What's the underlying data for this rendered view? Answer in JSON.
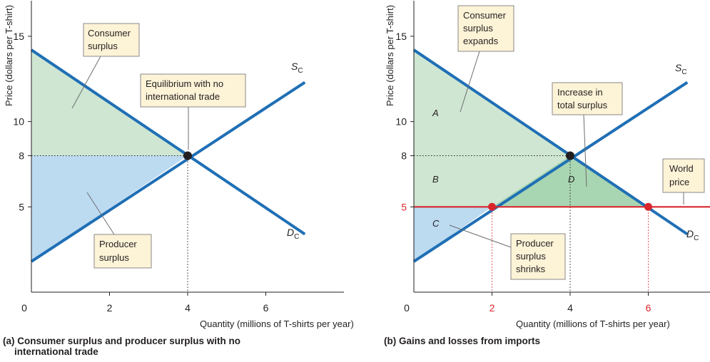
{
  "chart_data": [
    {
      "type": "line",
      "caption": "(a) Consumer surplus and producer surplus with no international trade",
      "caption_lines": [
        "(a) Consumer surplus and producer surplus with no",
        "international trade"
      ],
      "xlabel": "Quantity (millions of T-shirts per year)",
      "ylabel": "Price (dollars per T-shirt)",
      "xlim": [
        0,
        8
      ],
      "ylim": [
        0,
        17
      ],
      "x_ticks": [
        "0",
        "2",
        "4",
        "6"
      ],
      "y_ticks": [
        "5",
        "8",
        "10",
        "15"
      ],
      "series": [
        {
          "name": "D",
          "sub": "C",
          "x": [
            0,
            7
          ],
          "y": [
            14.2,
            3.4
          ]
        },
        {
          "name": "S",
          "sub": "C",
          "x": [
            0,
            7
          ],
          "y": [
            1.8,
            12.3
          ]
        }
      ],
      "equilibrium": {
        "x": 4,
        "y": 8
      },
      "shaded": [
        {
          "label": "Consumer surplus",
          "color": "#cfe6d2"
        },
        {
          "label": "Producer surplus",
          "color": "#bcdaf0"
        }
      ],
      "callouts": [
        {
          "lines": [
            "Consumer",
            "surplus"
          ]
        },
        {
          "lines": [
            "Equilibrium with no",
            "international trade"
          ]
        },
        {
          "lines": [
            "Producer",
            "surplus"
          ]
        }
      ]
    },
    {
      "type": "line",
      "caption": "(b) Gains and losses from imports",
      "xlabel": "Quantity (millions of T-shirts per year)",
      "ylabel": "Price (dollars per T-shirt)",
      "xlim": [
        0,
        8
      ],
      "ylim": [
        0,
        17
      ],
      "x_ticks": [
        "0",
        "2",
        "4",
        "6"
      ],
      "highlight_x_ticks": [
        "2",
        "6"
      ],
      "y_ticks": [
        "5",
        "8",
        "10",
        "15"
      ],
      "highlight_y_ticks": [
        "5"
      ],
      "series": [
        {
          "name": "D",
          "sub": "C",
          "x": [
            0,
            7
          ],
          "y": [
            14.2,
            3.4
          ]
        },
        {
          "name": "S",
          "sub": "C",
          "x": [
            0,
            7
          ],
          "y": [
            1.8,
            12.3
          ]
        },
        {
          "name": "World price",
          "x": [
            0,
            8
          ],
          "y": [
            5,
            5
          ]
        }
      ],
      "equilibrium": {
        "x": 4,
        "y": 8
      },
      "world_price_points": [
        {
          "x": 2,
          "y": 5
        },
        {
          "x": 6,
          "y": 5
        }
      ],
      "region_labels": [
        "A",
        "B",
        "C",
        "D"
      ],
      "shaded": [
        {
          "label": "Consumer surplus expands",
          "color": "#cfe6d2"
        },
        {
          "label": "Increase in total surplus",
          "color": "#a8d6b2"
        },
        {
          "label": "Producer surplus shrinks",
          "color": "#bcdaf0"
        }
      ],
      "callouts": [
        {
          "lines": [
            "Consumer",
            "surplus",
            "expands"
          ]
        },
        {
          "lines": [
            "Increase in",
            "total surplus"
          ]
        },
        {
          "lines": [
            "World",
            "price"
          ]
        },
        {
          "lines": [
            "Producer",
            "surplus",
            "shrinks"
          ]
        }
      ]
    }
  ],
  "colors": {
    "curve": "#1f6fb5",
    "world_price": "#d9262c",
    "consumer_surplus": "#cfe6d2",
    "total_surplus_gain": "#a8d6b2",
    "producer_surplus": "#bcdaf0",
    "callout_fill": "#fdf3d7",
    "equilibrium_dot": "#231f20",
    "red_dot": "#d9262c"
  }
}
